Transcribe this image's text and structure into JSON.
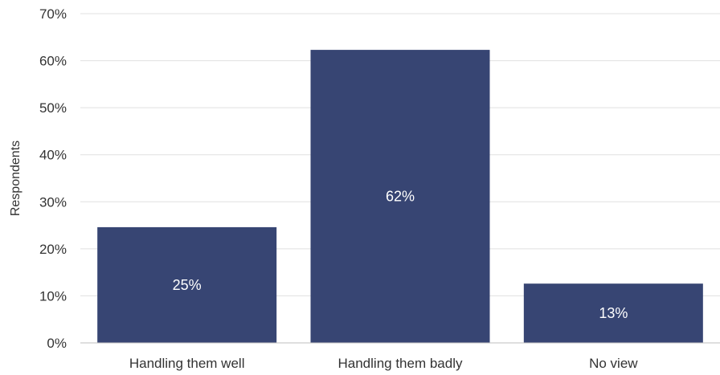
{
  "chart_data": {
    "type": "bar",
    "categories": [
      "Handling them well",
      "Handling them badly",
      "No view"
    ],
    "values": [
      24.6,
      62.3,
      12.6
    ],
    "data_labels": [
      "25%",
      "62%",
      "13%"
    ],
    "title": "",
    "xlabel": "",
    "ylabel": "Respondents",
    "ylim": [
      0,
      70
    ],
    "yticks": [
      "0%",
      "10%",
      "20%",
      "30%",
      "40%",
      "50%",
      "60%",
      "70%"
    ],
    "grid": true,
    "legend": "none",
    "colors": {
      "bar": "#374573",
      "grid": "#e0e0e0",
      "axis": "#bfbfbf"
    }
  }
}
